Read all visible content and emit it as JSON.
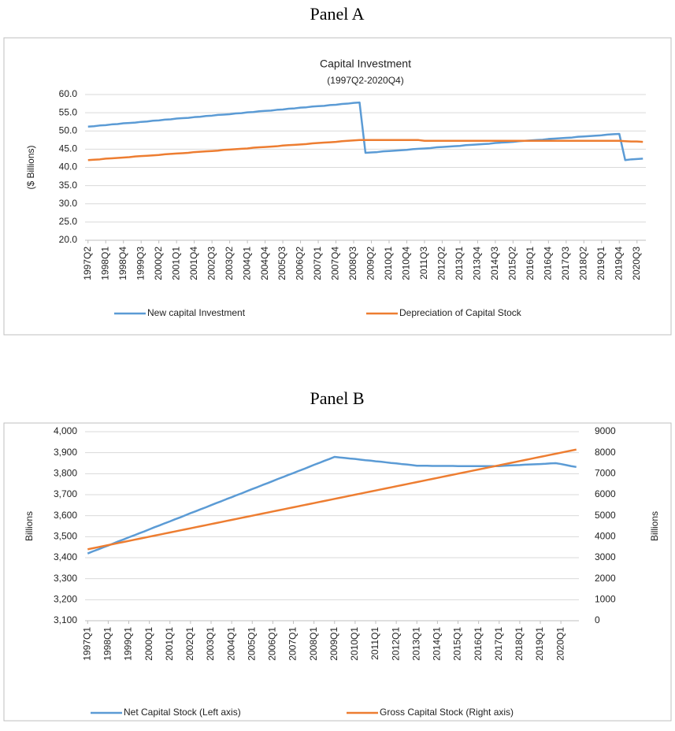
{
  "chart_data": [
    {
      "type": "line",
      "panel": "Panel A",
      "title": "Capital Investment",
      "subtitle": "(1997Q2-2020Q4)",
      "ylabel": "($ Billions)",
      "categories": [
        "1997Q2",
        null,
        null,
        "1998Q1",
        null,
        null,
        "1998Q4",
        null,
        null,
        "1999Q3",
        null,
        null,
        "2000Q2",
        null,
        null,
        "2001Q1",
        null,
        null,
        "2001Q4",
        null,
        null,
        "2002Q3",
        null,
        null,
        "2003Q2",
        null,
        null,
        "2004Q1",
        null,
        null,
        "2004Q4",
        null,
        null,
        "2005Q3",
        null,
        null,
        "2006Q2",
        null,
        null,
        "2007Q1",
        null,
        null,
        "2007Q4",
        null,
        null,
        "2008Q3",
        null,
        null,
        "2009Q2",
        null,
        null,
        "2010Q1",
        null,
        null,
        "2010Q4",
        null,
        null,
        "2011Q3",
        null,
        null,
        "2012Q2",
        null,
        null,
        "2013Q1",
        null,
        null,
        "2013Q4",
        null,
        null,
        "2014Q3",
        null,
        null,
        "2015Q2",
        null,
        null,
        "2016Q1",
        null,
        null,
        "2016Q4",
        null,
        null,
        "2017Q3",
        null,
        null,
        "2018Q2",
        null,
        null,
        "2019Q1",
        null,
        null,
        "2019Q4",
        null,
        null,
        "2020Q3",
        null
      ],
      "series": [
        {
          "name": "New capital Investment",
          "color": "#5b9bd5",
          "values": [
            51.2,
            51.3,
            51.5,
            51.6,
            51.8,
            51.9,
            52.1,
            52.2,
            52.3,
            52.5,
            52.6,
            52.8,
            52.9,
            53.1,
            53.2,
            53.4,
            53.5,
            53.6,
            53.8,
            53.9,
            54.1,
            54.2,
            54.4,
            54.5,
            54.6,
            54.8,
            54.9,
            55.1,
            55.2,
            55.4,
            55.5,
            55.6,
            55.8,
            55.9,
            56.1,
            56.2,
            56.4,
            56.5,
            56.7,
            56.8,
            56.9,
            57.1,
            57.2,
            57.4,
            57.5,
            57.7,
            57.8,
            44.0,
            44.1,
            44.2,
            44.4,
            44.5,
            44.6,
            44.7,
            44.8,
            45.0,
            45.1,
            45.2,
            45.3,
            45.5,
            45.6,
            45.7,
            45.8,
            45.9,
            46.1,
            46.2,
            46.3,
            46.4,
            46.5,
            46.7,
            46.8,
            46.9,
            47.0,
            47.2,
            47.3,
            47.4,
            47.5,
            47.6,
            47.8,
            47.9,
            48.0,
            48.1,
            48.2,
            48.4,
            48.5,
            48.6,
            48.7,
            48.8,
            49.0,
            49.1,
            49.2,
            42.0,
            42.2,
            42.3,
            42.4
          ]
        },
        {
          "name": "Depreciation of Capital Stock",
          "color": "#ed7d31",
          "values": [
            42.0,
            42.1,
            42.2,
            42.4,
            42.5,
            42.6,
            42.7,
            42.8,
            43.0,
            43.1,
            43.2,
            43.3,
            43.4,
            43.6,
            43.7,
            43.8,
            43.9,
            44.0,
            44.2,
            44.3,
            44.4,
            44.5,
            44.6,
            44.8,
            44.9,
            45.0,
            45.1,
            45.2,
            45.4,
            45.5,
            45.6,
            45.7,
            45.8,
            46.0,
            46.1,
            46.2,
            46.3,
            46.4,
            46.6,
            46.7,
            46.8,
            46.9,
            47.0,
            47.2,
            47.3,
            47.4,
            47.5,
            47.5,
            47.5,
            47.5,
            47.5,
            47.5,
            47.5,
            47.5,
            47.5,
            47.5,
            47.5,
            47.3,
            47.3,
            47.3,
            47.3,
            47.3,
            47.3,
            47.3,
            47.3,
            47.3,
            47.3,
            47.3,
            47.3,
            47.3,
            47.3,
            47.3,
            47.3,
            47.3,
            47.3,
            47.3,
            47.3,
            47.3,
            47.3,
            47.3,
            47.3,
            47.3,
            47.3,
            47.3,
            47.3,
            47.3,
            47.3,
            47.3,
            47.3,
            47.3,
            47.3,
            47.2,
            47.1,
            47.1,
            47.0
          ]
        }
      ],
      "ylim": [
        20,
        60
      ],
      "yticks": [
        {
          "value": 20,
          "label": "20.0"
        },
        {
          "value": 25,
          "label": "25.0"
        },
        {
          "value": 30,
          "label": "30.0"
        },
        {
          "value": 35,
          "label": "35.0"
        },
        {
          "value": 40,
          "label": "40.0"
        },
        {
          "value": 45,
          "label": "45.0"
        },
        {
          "value": 50,
          "label": "50.0"
        },
        {
          "value": 55,
          "label": "55.0"
        },
        {
          "value": 60,
          "label": "60.0"
        }
      ],
      "grid": true
    },
    {
      "type": "line",
      "panel": "Panel B",
      "ylabel": "Billions",
      "y2label": "Billions",
      "categories": [
        "1997Q1",
        null,
        null,
        null,
        "1998Q1",
        null,
        null,
        null,
        "1999Q1",
        null,
        null,
        null,
        "2000Q1",
        null,
        null,
        null,
        "2001Q1",
        null,
        null,
        null,
        "2002Q1",
        null,
        null,
        null,
        "2003Q1",
        null,
        null,
        null,
        "2004Q1",
        null,
        null,
        null,
        "2005Q1",
        null,
        null,
        null,
        "2006Q1",
        null,
        null,
        null,
        "2007Q1",
        null,
        null,
        null,
        "2008Q1",
        null,
        null,
        null,
        "2009Q1",
        null,
        null,
        null,
        "2010Q1",
        null,
        null,
        null,
        "2011Q1",
        null,
        null,
        null,
        "2012Q1",
        null,
        null,
        null,
        "2013Q1",
        null,
        null,
        null,
        "2014Q1",
        null,
        null,
        null,
        "2015Q1",
        null,
        null,
        null,
        "2016Q1",
        null,
        null,
        null,
        "2017Q1",
        null,
        null,
        null,
        "2018Q1",
        null,
        null,
        null,
        "2019Q1",
        null,
        null,
        null,
        "2020Q1",
        null,
        null,
        null
      ],
      "series": [
        {
          "name": "Net Capital Stock (Left axis)",
          "color": "#5b9bd5",
          "values": [
            3420,
            3430,
            3439,
            3449,
            3458,
            3468,
            3478,
            3487,
            3497,
            3506,
            3516,
            3525,
            3535,
            3545,
            3554,
            3564,
            3573,
            3583,
            3592,
            3602,
            3612,
            3621,
            3631,
            3640,
            3650,
            3660,
            3669,
            3679,
            3688,
            3698,
            3707,
            3717,
            3727,
            3736,
            3746,
            3755,
            3765,
            3775,
            3784,
            3794,
            3803,
            3813,
            3822,
            3832,
            3842,
            3851,
            3861,
            3870,
            3880,
            3877,
            3875,
            3872,
            3870,
            3867,
            3864,
            3862,
            3859,
            3857,
            3854,
            3851,
            3849,
            3846,
            3844,
            3841,
            3838,
            3838,
            3838,
            3837,
            3837,
            3837,
            3837,
            3837,
            3836,
            3836,
            3836,
            3836,
            3836,
            3836,
            3836,
            3836,
            3836,
            3838,
            3839,
            3840,
            3841,
            3843,
            3844,
            3845,
            3846,
            3847,
            3849,
            3850,
            3846,
            3841,
            3836,
            3832
          ]
        },
        {
          "name": "Gross Capital Stock (Right axis)",
          "color": "#ed7d31",
          "axis": "y2",
          "values": [
            3400,
            3450,
            3500,
            3550,
            3600,
            3650,
            3700,
            3750,
            3800,
            3850,
            3900,
            3950,
            4000,
            4050,
            4100,
            4150,
            4200,
            4250,
            4300,
            4350,
            4400,
            4450,
            4500,
            4550,
            4600,
            4650,
            4700,
            4750,
            4800,
            4850,
            4900,
            4950,
            5000,
            5050,
            5100,
            5150,
            5200,
            5250,
            5300,
            5350,
            5400,
            5450,
            5500,
            5550,
            5600,
            5650,
            5700,
            5750,
            5800,
            5850,
            5900,
            5950,
            6000,
            6050,
            6100,
            6150,
            6200,
            6250,
            6300,
            6350,
            6400,
            6450,
            6500,
            6550,
            6600,
            6650,
            6700,
            6750,
            6800,
            6850,
            6900,
            6950,
            7000,
            7050,
            7100,
            7150,
            7200,
            7250,
            7300,
            7350,
            7400,
            7450,
            7500,
            7550,
            7600,
            7650,
            7700,
            7750,
            7800,
            7850,
            7900,
            7950,
            8000,
            8050,
            8100,
            8150
          ]
        }
      ],
      "ylim": [
        3100,
        4000
      ],
      "yticks": [
        {
          "value": 3100,
          "label": "3,100"
        },
        {
          "value": 3200,
          "label": "3,200"
        },
        {
          "value": 3300,
          "label": "3,300"
        },
        {
          "value": 3400,
          "label": "3,400"
        },
        {
          "value": 3500,
          "label": "3,500"
        },
        {
          "value": 3600,
          "label": "3,600"
        },
        {
          "value": 3700,
          "label": "3,700"
        },
        {
          "value": 3800,
          "label": "3,800"
        },
        {
          "value": 3900,
          "label": "3,900"
        },
        {
          "value": 4000,
          "label": "4,000"
        }
      ],
      "y2lim": [
        0,
        9000
      ],
      "y2ticks": [
        0,
        1000,
        2000,
        3000,
        4000,
        5000,
        6000,
        7000,
        8000,
        9000
      ],
      "grid": true
    }
  ]
}
